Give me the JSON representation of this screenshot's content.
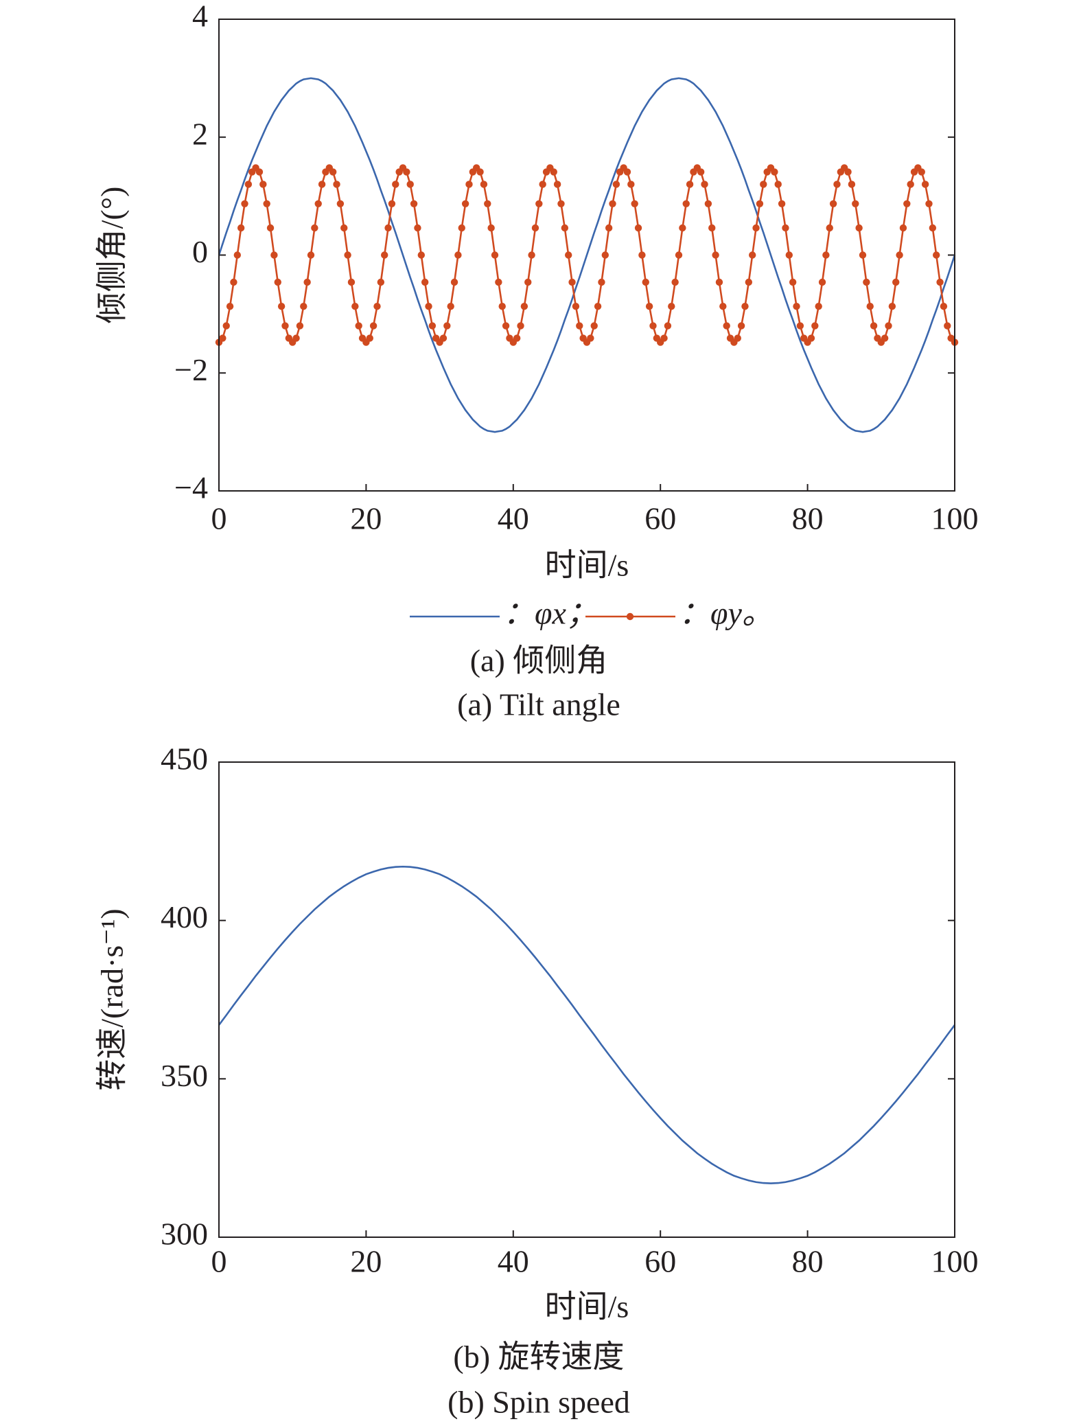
{
  "chart_data": [
    {
      "type": "line",
      "ylabel": "倾侧角/(°)",
      "xlabel": "时间/s",
      "caption": "(a) 倾侧角",
      "caption_en": "(a) Tilt angle",
      "legend": "bottom",
      "xlim": [
        0,
        100
      ],
      "xticks": [
        0,
        20,
        40,
        60,
        80,
        100
      ],
      "ylim": [
        -4,
        4
      ],
      "yticks": [
        {
          "value": -4,
          "label": "−4"
        },
        {
          "value": -2,
          "label": "−2"
        },
        0,
        2,
        4
      ],
      "x": [
        0,
        0.5,
        1,
        1.5,
        2,
        2.5,
        3,
        3.5,
        4,
        4.5,
        5,
        5.5,
        6,
        6.5,
        7,
        7.5,
        8,
        8.5,
        9,
        9.5,
        10,
        10.5,
        11,
        11.5,
        12,
        12.5,
        13,
        13.5,
        14,
        14.5,
        15,
        15.5,
        16,
        16.5,
        17,
        17.5,
        18,
        18.5,
        19,
        19.5,
        20,
        20.5,
        21,
        21.5,
        22,
        22.5,
        23,
        23.5,
        24,
        24.5,
        25,
        25.5,
        26,
        26.5,
        27,
        27.5,
        28,
        28.5,
        29,
        29.5,
        30,
        30.5,
        31,
        31.5,
        32,
        32.5,
        33,
        33.5,
        34,
        34.5,
        35,
        35.5,
        36,
        36.5,
        37,
        37.5,
        38,
        38.5,
        39,
        39.5,
        40,
        40.5,
        41,
        41.5,
        42,
        42.5,
        43,
        43.5,
        44,
        44.5,
        45,
        45.5,
        46,
        46.5,
        47,
        47.5,
        48,
        48.5,
        49,
        49.5,
        50,
        50.5,
        51,
        51.5,
        52,
        52.5,
        53,
        53.5,
        54,
        54.5,
        55,
        55.5,
        56,
        56.5,
        57,
        57.5,
        58,
        58.5,
        59,
        59.5,
        60,
        60.5,
        61,
        61.5,
        62,
        62.5,
        63,
        63.5,
        64,
        64.5,
        65,
        65.5,
        66,
        66.5,
        67,
        67.5,
        68,
        68.5,
        69,
        69.5,
        70,
        70.5,
        71,
        71.5,
        72,
        72.5,
        73,
        73.5,
        74,
        74.5,
        75,
        75.5,
        76,
        76.5,
        77,
        77.5,
        78,
        78.5,
        79,
        79.5,
        80,
        80.5,
        81,
        81.5,
        82,
        82.5,
        83,
        83.5,
        84,
        84.5,
        85,
        85.5,
        86,
        86.5,
        87,
        87.5,
        88,
        88.5,
        89,
        89.5,
        90,
        90.5,
        91,
        91.5,
        92,
        92.5,
        93,
        93.5,
        94,
        94.5,
        95,
        95.5,
        96,
        96.5,
        97,
        97.5,
        98,
        98.5,
        99,
        99.5,
        100
      ],
      "series": [
        {
          "name": "：φx；",
          "color": "#3b67ad",
          "marker": false,
          "values": [
            0,
            0.19,
            0.38,
            0.56,
            0.75,
            0.93,
            1.1,
            1.28,
            1.45,
            1.61,
            1.76,
            1.91,
            2.05,
            2.19,
            2.31,
            2.43,
            2.53,
            2.63,
            2.71,
            2.79,
            2.85,
            2.91,
            2.95,
            2.98,
            2.99,
            3,
            2.99,
            2.98,
            2.95,
            2.91,
            2.85,
            2.79,
            2.71,
            2.63,
            2.53,
            2.43,
            2.31,
            2.19,
            2.05,
            1.91,
            1.76,
            1.61,
            1.45,
            1.28,
            1.1,
            0.93,
            0.75,
            0.56,
            0.38,
            0.19,
            0,
            -0.19,
            -0.38,
            -0.56,
            -0.75,
            -0.93,
            -1.1,
            -1.28,
            -1.45,
            -1.61,
            -1.76,
            -1.91,
            -2.05,
            -2.19,
            -2.31,
            -2.43,
            -2.53,
            -2.63,
            -2.71,
            -2.79,
            -2.85,
            -2.91,
            -2.95,
            -2.98,
            -2.99,
            -3,
            -2.99,
            -2.98,
            -2.95,
            -2.91,
            -2.85,
            -2.79,
            -2.71,
            -2.63,
            -2.53,
            -2.43,
            -2.31,
            -2.19,
            -2.05,
            -1.91,
            -1.76,
            -1.61,
            -1.45,
            -1.28,
            -1.1,
            -0.93,
            -0.75,
            -0.56,
            -0.38,
            -0.19,
            0,
            0.19,
            0.38,
            0.56,
            0.75,
            0.93,
            1.1,
            1.28,
            1.45,
            1.61,
            1.76,
            1.91,
            2.05,
            2.19,
            2.31,
            2.43,
            2.53,
            2.63,
            2.71,
            2.79,
            2.85,
            2.91,
            2.95,
            2.98,
            2.99,
            3,
            2.99,
            2.98,
            2.95,
            2.91,
            2.85,
            2.79,
            2.71,
            2.63,
            2.53,
            2.43,
            2.31,
            2.19,
            2.05,
            1.91,
            1.76,
            1.61,
            1.45,
            1.28,
            1.1,
            0.93,
            0.75,
            0.56,
            0.38,
            0.19,
            0,
            -0.19,
            -0.38,
            -0.56,
            -0.75,
            -0.93,
            -1.1,
            -1.28,
            -1.45,
            -1.61,
            -1.76,
            -1.91,
            -2.05,
            -2.19,
            -2.31,
            -2.43,
            -2.53,
            -2.63,
            -2.71,
            -2.79,
            -2.85,
            -2.91,
            -2.95,
            -2.98,
            -2.99,
            -3,
            -2.99,
            -2.98,
            -2.95,
            -2.91,
            -2.85,
            -2.79,
            -2.71,
            -2.63,
            -2.53,
            -2.43,
            -2.31,
            -2.19,
            -2.05,
            -1.91,
            -1.76,
            -1.61,
            -1.45,
            -1.28,
            -1.1,
            -0.93,
            -0.75,
            -0.56,
            -0.38,
            -0.19,
            0
          ]
        },
        {
          "name": "：φy。",
          "color": "#d04a1f",
          "marker": true,
          "values": [
            -1.48,
            -1.41,
            -1.2,
            -0.87,
            -0.46,
            0,
            0.46,
            0.87,
            1.2,
            1.41,
            1.48,
            1.41,
            1.2,
            0.87,
            0.46,
            0,
            -0.46,
            -0.87,
            -1.2,
            -1.41,
            -1.48,
            -1.41,
            -1.2,
            -0.87,
            -0.46,
            0,
            0.46,
            0.87,
            1.2,
            1.41,
            1.48,
            1.41,
            1.2,
            0.87,
            0.46,
            0,
            -0.46,
            -0.87,
            -1.2,
            -1.41,
            -1.48,
            -1.41,
            -1.2,
            -0.87,
            -0.46,
            0,
            0.46,
            0.87,
            1.2,
            1.41,
            1.48,
            1.41,
            1.2,
            0.87,
            0.46,
            0,
            -0.46,
            -0.87,
            -1.2,
            -1.41,
            -1.48,
            -1.41,
            -1.2,
            -0.87,
            -0.46,
            0,
            0.46,
            0.87,
            1.2,
            1.41,
            1.48,
            1.41,
            1.2,
            0.87,
            0.46,
            0,
            -0.46,
            -0.87,
            -1.2,
            -1.41,
            -1.48,
            -1.41,
            -1.2,
            -0.87,
            -0.46,
            0,
            0.46,
            0.87,
            1.2,
            1.41,
            1.48,
            1.41,
            1.2,
            0.87,
            0.46,
            0,
            -0.46,
            -0.87,
            -1.2,
            -1.41,
            -1.48,
            -1.41,
            -1.2,
            -0.87,
            -0.46,
            0,
            0.46,
            0.87,
            1.2,
            1.41,
            1.48,
            1.41,
            1.2,
            0.87,
            0.46,
            0,
            -0.46,
            -0.87,
            -1.2,
            -1.41,
            -1.48,
            -1.41,
            -1.2,
            -0.87,
            -0.46,
            0,
            0.46,
            0.87,
            1.2,
            1.41,
            1.48,
            1.41,
            1.2,
            0.87,
            0.46,
            0,
            -0.46,
            -0.87,
            -1.2,
            -1.41,
            -1.48,
            -1.41,
            -1.2,
            -0.87,
            -0.46,
            0,
            0.46,
            0.87,
            1.2,
            1.41,
            1.48,
            1.41,
            1.2,
            0.87,
            0.46,
            0,
            -0.46,
            -0.87,
            -1.2,
            -1.41,
            -1.48,
            -1.41,
            -1.2,
            -0.87,
            -0.46,
            0,
            0.46,
            0.87,
            1.2,
            1.41,
            1.48,
            1.41,
            1.2,
            0.87,
            0.46,
            0,
            -0.46,
            -0.87,
            -1.2,
            -1.41,
            -1.48,
            -1.41,
            -1.2,
            -0.87,
            -0.46,
            0,
            0.46,
            0.87,
            1.2,
            1.41,
            1.48,
            1.41,
            1.2,
            0.87,
            0.46,
            0,
            -0.46,
            -0.87,
            -1.2,
            -1.41,
            -1.48
          ]
        }
      ]
    },
    {
      "type": "line",
      "ylabel": "转速/(rad·s⁻¹)",
      "xlabel": "时间/s",
      "caption": "(b) 旋转速度",
      "caption_en": "(b) Spin speed",
      "xlim": [
        0,
        100
      ],
      "xticks": [
        0,
        20,
        40,
        60,
        80,
        100
      ],
      "ylim": [
        300,
        450
      ],
      "yticks": [
        300,
        350,
        400,
        450
      ],
      "x": [
        0,
        1,
        2,
        3,
        4,
        5,
        6,
        7,
        8,
        9,
        10,
        11,
        12,
        13,
        14,
        15,
        16,
        17,
        18,
        19,
        20,
        21,
        22,
        23,
        24,
        25,
        26,
        27,
        28,
        29,
        30,
        31,
        32,
        33,
        34,
        35,
        36,
        37,
        38,
        39,
        40,
        41,
        42,
        43,
        44,
        45,
        46,
        47,
        48,
        49,
        50,
        51,
        52,
        53,
        54,
        55,
        56,
        57,
        58,
        59,
        60,
        61,
        62,
        63,
        64,
        65,
        66,
        67,
        68,
        69,
        70,
        71,
        72,
        73,
        74,
        75,
        76,
        77,
        78,
        79,
        80,
        81,
        82,
        83,
        84,
        85,
        86,
        87,
        88,
        89,
        90,
        91,
        92,
        93,
        94,
        95,
        96,
        97,
        98,
        99,
        100
      ],
      "series": [
        {
          "color": "#3b67ad",
          "marker": false,
          "values": [
            367,
            370.1,
            373.3,
            376.4,
            379.4,
            382.5,
            385.4,
            388.3,
            391.1,
            393.8,
            396.4,
            398.9,
            401.2,
            403.5,
            405.5,
            407.5,
            409.2,
            410.8,
            412.2,
            413.5,
            414.6,
            415.4,
            416.1,
            416.6,
            416.9,
            417,
            416.9,
            416.6,
            416.1,
            415.4,
            414.6,
            413.5,
            412.2,
            410.8,
            409.2,
            407.5,
            405.5,
            403.5,
            401.2,
            398.9,
            396.4,
            393.8,
            391.1,
            388.3,
            385.4,
            382.5,
            379.4,
            376.4,
            373.3,
            370.1,
            367,
            363.9,
            360.7,
            357.6,
            354.6,
            351.5,
            348.6,
            345.7,
            342.9,
            340.2,
            337.6,
            335.1,
            332.8,
            330.5,
            328.5,
            326.5,
            324.8,
            323.2,
            321.8,
            320.5,
            319.4,
            318.6,
            317.9,
            317.4,
            317.1,
            317,
            317.1,
            317.4,
            317.9,
            318.6,
            319.4,
            320.5,
            321.8,
            323.2,
            324.8,
            326.5,
            328.5,
            330.5,
            332.8,
            335.1,
            337.6,
            340.2,
            342.9,
            345.7,
            348.6,
            351.5,
            354.6,
            357.6,
            360.7,
            363.9,
            367
          ]
        }
      ]
    }
  ]
}
